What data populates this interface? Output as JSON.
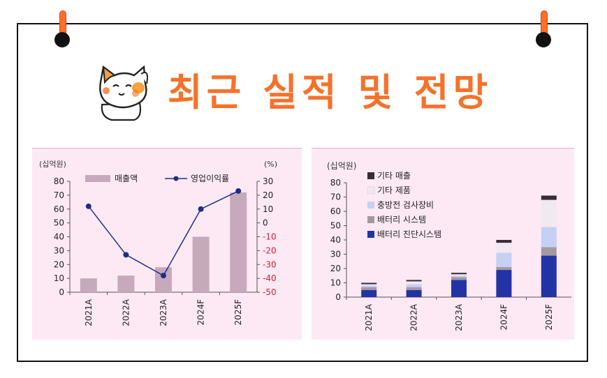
{
  "header": {
    "title": "최근 실적 및 전망",
    "mascot": "cat-mascot-icon"
  },
  "colors": {
    "accent": "#f5722b",
    "panel_bg": "#fde9f4",
    "bar_left": "#c6a9bb",
    "line_left": "#1f2d8a",
    "neg_tick": "#d11f3a"
  },
  "chart_data": [
    {
      "type": "bar",
      "ylabel": "(십억원)",
      "y2label": "(%)",
      "categories": [
        "2021A",
        "2022A",
        "2023A",
        "2024F",
        "2025F"
      ],
      "ylim": [
        0,
        80
      ],
      "yticks": [
        0,
        10,
        20,
        30,
        40,
        50,
        60,
        70,
        80
      ],
      "y2lim": [
        -50,
        30
      ],
      "y2ticks": [
        30,
        20,
        10,
        0,
        -10,
        -20,
        -30,
        -40,
        -50
      ],
      "series": [
        {
          "name": "매출액",
          "type": "bar",
          "axis": "left",
          "values": [
            10,
            12,
            18,
            40,
            72
          ]
        },
        {
          "name": "영업이익률",
          "type": "line",
          "axis": "right",
          "values": [
            12,
            -23,
            -38,
            10,
            23
          ]
        }
      ],
      "legend": "top"
    },
    {
      "type": "bar",
      "stacked": true,
      "ylabel": "(십억원)",
      "categories": [
        "2021A",
        "2022A",
        "2023A",
        "2024F",
        "2025F"
      ],
      "ylim": [
        0,
        80
      ],
      "yticks": [
        0,
        10,
        20,
        30,
        40,
        50,
        60,
        70,
        80
      ],
      "series": [
        {
          "name": "배터리 진단시스템",
          "color": "#2233a6",
          "values": [
            5,
            5,
            12,
            19,
            29
          ]
        },
        {
          "name": "배터리 시스템",
          "color": "#a39aa0",
          "values": [
            2,
            2,
            2,
            2,
            6
          ]
        },
        {
          "name": "충방전 검사장비",
          "color": "#c5d0f5",
          "values": [
            1,
            2,
            1,
            10,
            14
          ]
        },
        {
          "name": "기타 제품",
          "color": "#f2e8f0",
          "values": [
            1,
            2,
            1,
            7,
            19
          ]
        },
        {
          "name": "기타 매출",
          "color": "#3b2b38",
          "values": [
            1,
            1,
            1,
            2,
            3
          ]
        }
      ],
      "legend": "top-left"
    }
  ]
}
